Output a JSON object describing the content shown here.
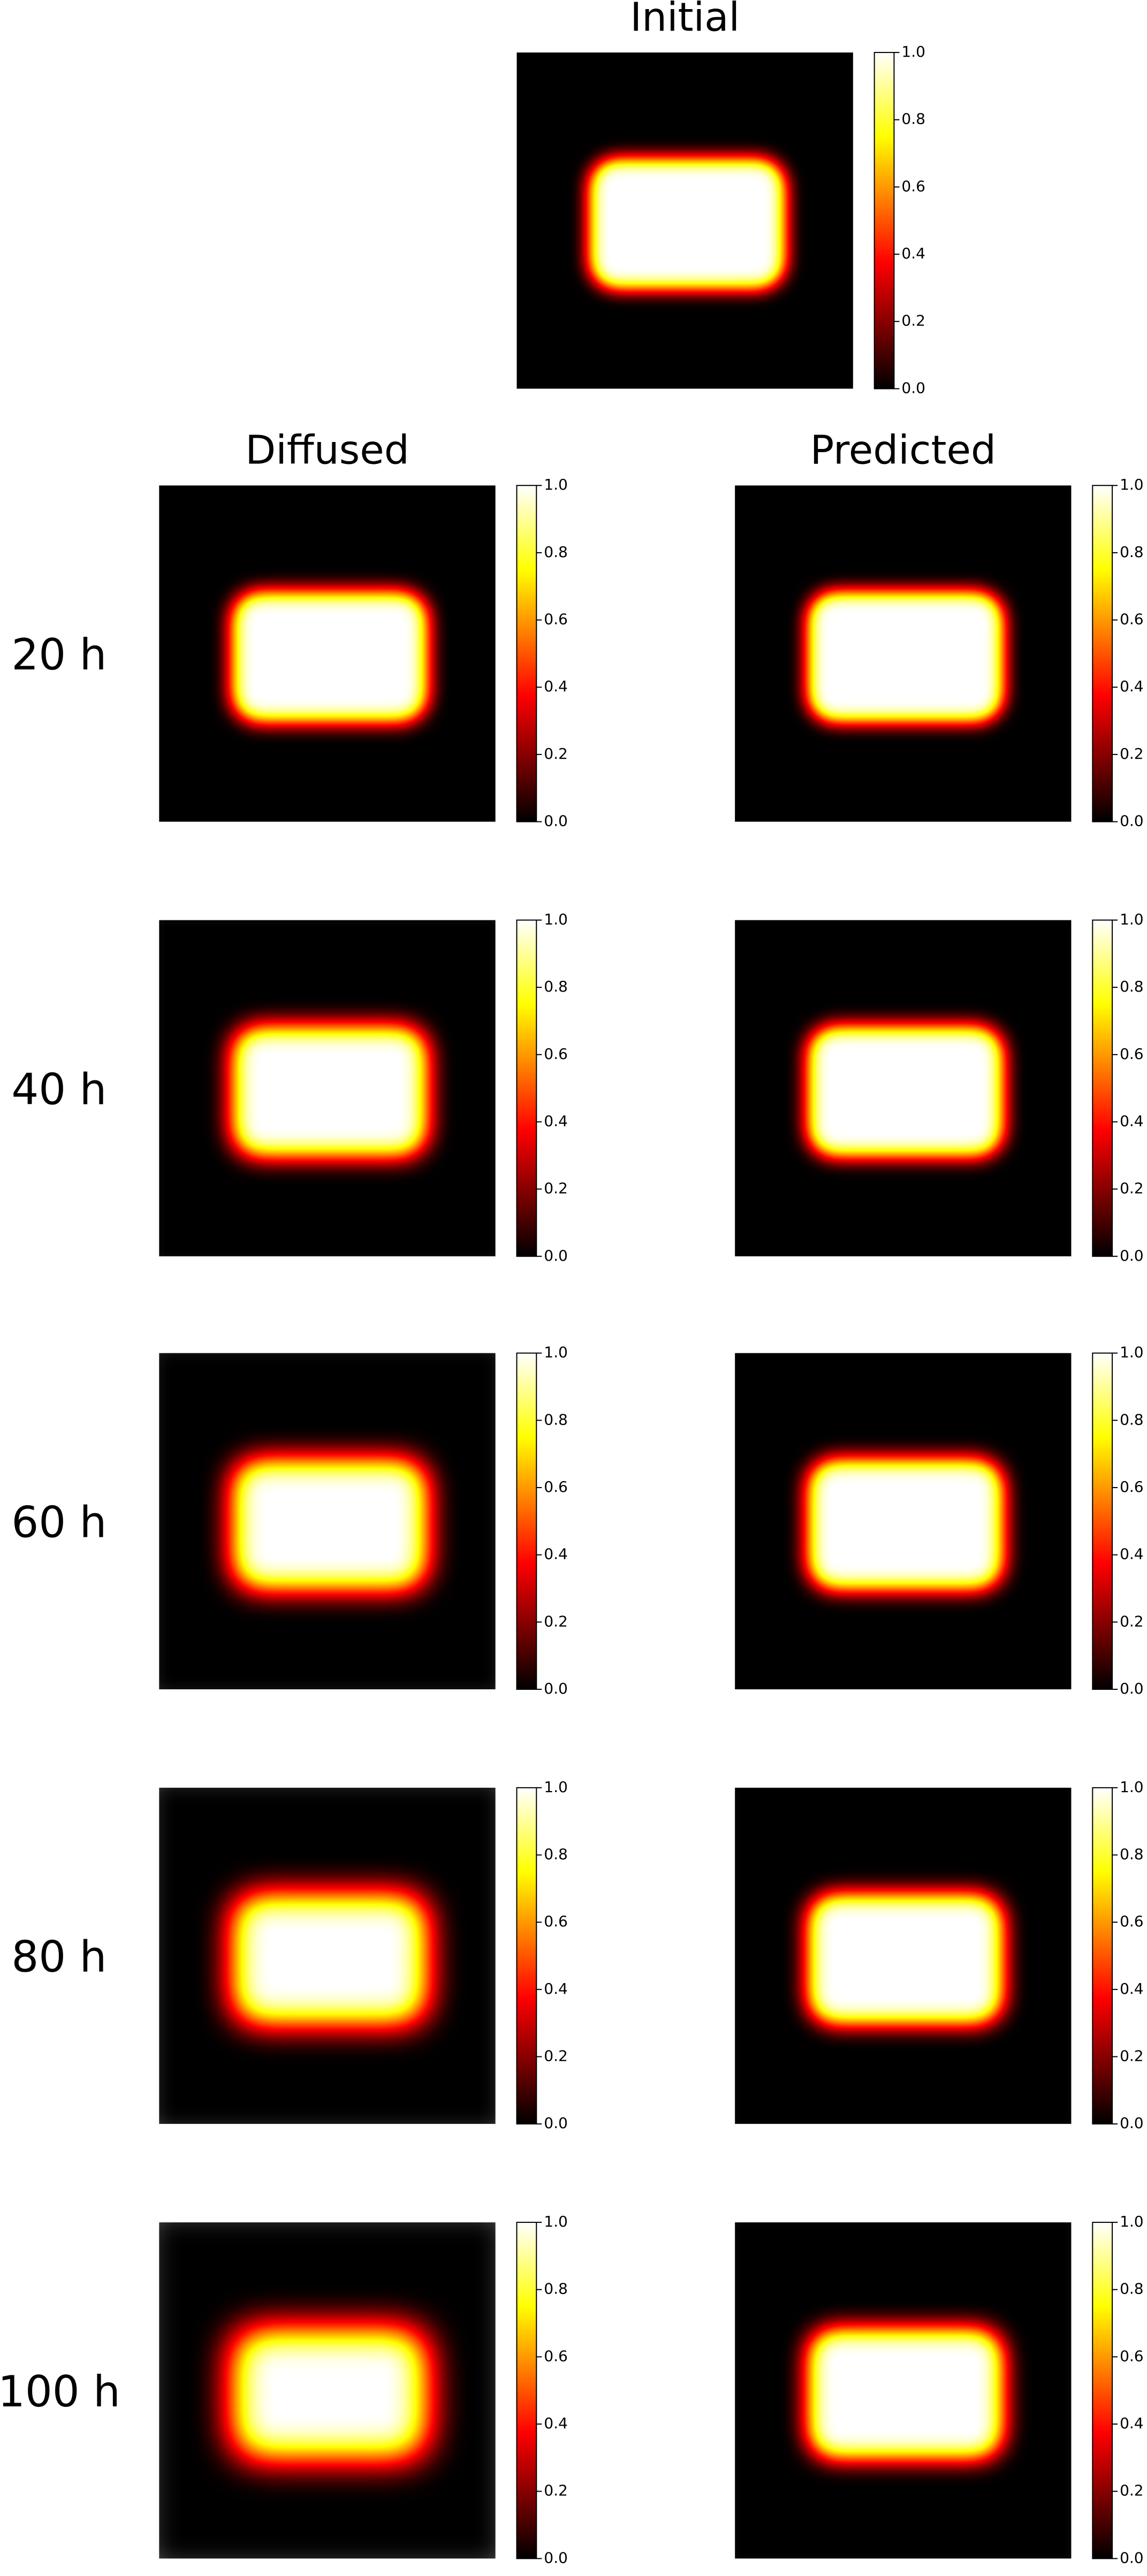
{
  "chart_data": [
    {
      "type": "heatmap",
      "title": "Initial",
      "cmap": "hot",
      "clim": [
        0,
        1
      ],
      "cticks": [
        {
          "value": 0,
          "label": "0.0"
        },
        {
          "value": 0.2,
          "label": "0.2"
        },
        {
          "value": 0.4,
          "label": "0.4"
        },
        {
          "value": 0.6,
          "label": "0.6"
        },
        {
          "value": 0.8,
          "label": "0.8"
        },
        {
          "value": 1,
          "label": "1.0"
        }
      ]
    },
    {
      "type": "heatmap",
      "title": "Diffused",
      "row_label": "20 h",
      "cmap": "hot",
      "clim": [
        0,
        1
      ],
      "cticks": [
        {
          "value": 0,
          "label": "0.0"
        },
        {
          "value": 0.2,
          "label": "0.2"
        },
        {
          "value": 0.4,
          "label": "0.4"
        },
        {
          "value": 0.6,
          "label": "0.6"
        },
        {
          "value": 0.8,
          "label": "0.8"
        },
        {
          "value": 1,
          "label": "1.0"
        }
      ]
    },
    {
      "type": "heatmap",
      "title": "Predicted",
      "cmap": "hot",
      "clim": [
        0,
        1
      ],
      "cticks": [
        {
          "value": 0,
          "label": "0.0"
        },
        {
          "value": 0.2,
          "label": "0.2"
        },
        {
          "value": 0.4,
          "label": "0.4"
        },
        {
          "value": 0.6,
          "label": "0.6"
        },
        {
          "value": 0.8,
          "label": "0.8"
        },
        {
          "value": 1,
          "label": "1.0"
        }
      ]
    },
    {
      "type": "heatmap",
      "row_label": "40 h",
      "cmap": "hot",
      "clim": [
        0,
        1
      ],
      "cticks": [
        {
          "value": 0,
          "label": "0.0"
        },
        {
          "value": 0.2,
          "label": "0.2"
        },
        {
          "value": 0.4,
          "label": "0.4"
        },
        {
          "value": 0.6,
          "label": "0.6"
        },
        {
          "value": 0.8,
          "label": "0.8"
        },
        {
          "value": 1,
          "label": "1.0"
        }
      ]
    },
    {
      "type": "heatmap",
      "cmap": "hot",
      "clim": [
        0,
        1
      ],
      "cticks": [
        {
          "value": 0,
          "label": "0.0"
        },
        {
          "value": 0.2,
          "label": "0.2"
        },
        {
          "value": 0.4,
          "label": "0.4"
        },
        {
          "value": 0.6,
          "label": "0.6"
        },
        {
          "value": 0.8,
          "label": "0.8"
        },
        {
          "value": 1,
          "label": "1.0"
        }
      ]
    },
    {
      "type": "heatmap",
      "row_label": "60 h",
      "cmap": "hot",
      "clim": [
        0,
        1
      ],
      "cticks": [
        {
          "value": 0,
          "label": "0.0"
        },
        {
          "value": 0.2,
          "label": "0.2"
        },
        {
          "value": 0.4,
          "label": "0.4"
        },
        {
          "value": 0.6,
          "label": "0.6"
        },
        {
          "value": 0.8,
          "label": "0.8"
        },
        {
          "value": 1,
          "label": "1.0"
        }
      ]
    },
    {
      "type": "heatmap",
      "cmap": "hot",
      "clim": [
        0,
        1
      ],
      "cticks": [
        {
          "value": 0,
          "label": "0.0"
        },
        {
          "value": 0.2,
          "label": "0.2"
        },
        {
          "value": 0.4,
          "label": "0.4"
        },
        {
          "value": 0.6,
          "label": "0.6"
        },
        {
          "value": 0.8,
          "label": "0.8"
        },
        {
          "value": 1,
          "label": "1.0"
        }
      ]
    },
    {
      "type": "heatmap",
      "row_label": "80 h",
      "cmap": "hot",
      "clim": [
        0,
        1
      ],
      "cticks": [
        {
          "value": 0,
          "label": "0.0"
        },
        {
          "value": 0.2,
          "label": "0.2"
        },
        {
          "value": 0.4,
          "label": "0.4"
        },
        {
          "value": 0.6,
          "label": "0.6"
        },
        {
          "value": 0.8,
          "label": "0.8"
        },
        {
          "value": 1,
          "label": "1.0"
        }
      ]
    },
    {
      "type": "heatmap",
      "cmap": "hot",
      "clim": [
        0,
        1
      ],
      "cticks": [
        {
          "value": 0,
          "label": "0.0"
        },
        {
          "value": 0.2,
          "label": "0.2"
        },
        {
          "value": 0.4,
          "label": "0.4"
        },
        {
          "value": 0.6,
          "label": "0.6"
        },
        {
          "value": 0.8,
          "label": "0.8"
        },
        {
          "value": 1,
          "label": "1.0"
        }
      ]
    },
    {
      "type": "heatmap",
      "row_label": "100 h",
      "cmap": "hot",
      "clim": [
        0,
        1
      ],
      "cticks": [
        {
          "value": 0,
          "label": "0.0"
        },
        {
          "value": 0.2,
          "label": "0.2"
        },
        {
          "value": 0.4,
          "label": "0.4"
        },
        {
          "value": 0.6,
          "label": "0.6"
        },
        {
          "value": 0.8,
          "label": "0.8"
        },
        {
          "value": 1,
          "label": "1.0"
        }
      ]
    },
    {
      "type": "heatmap",
      "cmap": "hot",
      "clim": [
        0,
        1
      ],
      "cticks": [
        {
          "value": 0,
          "label": "0.0"
        },
        {
          "value": 0.2,
          "label": "0.2"
        },
        {
          "value": 0.4,
          "label": "0.4"
        },
        {
          "value": 0.6,
          "label": "0.6"
        },
        {
          "value": 0.8,
          "label": "0.8"
        },
        {
          "value": 1,
          "label": "1.0"
        }
      ]
    }
  ]
}
